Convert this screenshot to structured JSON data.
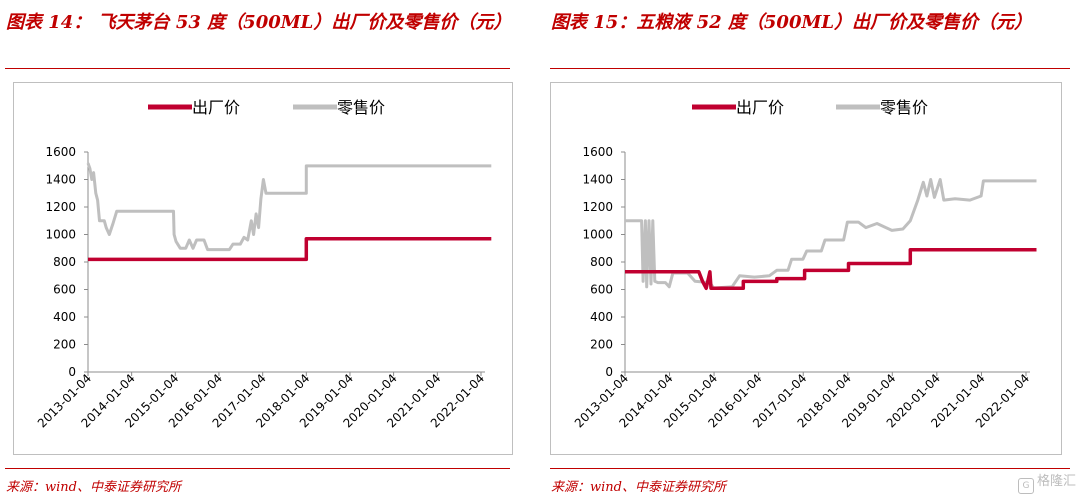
{
  "charts": [
    {
      "title": "图表 14： 飞天茅台 53 度（500ML）出厂价及零售价（元）",
      "source": "来源：wind、中泰证券研究所"
    },
    {
      "title": "图表 15：五粮液 52 度（500ML）出厂价及零售价（元）",
      "source": "来源：wind、中泰证券研究所"
    }
  ],
  "colors": {
    "factory": "#c00030",
    "retail": "#bfbfbf",
    "accent": "#c00000"
  },
  "watermark": {
    "text": "格隆汇"
  },
  "chart_data": [
    {
      "type": "line",
      "xlabel": "",
      "ylabel": "",
      "xlim": [
        "2013-01-04",
        "2022-01-04"
      ],
      "ylim": [
        0,
        1600
      ],
      "yticks": [
        0,
        200,
        400,
        600,
        800,
        1000,
        1200,
        1400,
        1600
      ],
      "xticks": [
        "2013-01-04",
        "2014-01-04",
        "2015-01-04",
        "2016-01-04",
        "2017-01-04",
        "2018-01-04",
        "2019-01-04",
        "2020-01-04",
        "2021-01-04",
        "2022-01-04"
      ],
      "grid": false,
      "legend_position": "top-center",
      "series": [
        {
          "name": "出厂价",
          "color": "#c00030",
          "points": [
            [
              "2013-01-04",
              819
            ],
            [
              "2018-01-04",
              819
            ],
            [
              "2018-01-04",
              969
            ],
            [
              "2022-03-31",
              969
            ]
          ]
        },
        {
          "name": "零售价",
          "color": "#bfbfbf",
          "points": [
            [
              "2013-01-04",
              1519
            ],
            [
              "2013-01-20",
              1480
            ],
            [
              "2013-02-05",
              1400
            ],
            [
              "2013-02-20",
              1450
            ],
            [
              "2013-03-10",
              1300
            ],
            [
              "2013-03-25",
              1250
            ],
            [
              "2013-04-10",
              1100
            ],
            [
              "2013-05-20",
              1100
            ],
            [
              "2013-06-05",
              1050
            ],
            [
              "2013-07-01",
              1000
            ],
            [
              "2013-08-01",
              1080
            ],
            [
              "2013-09-01",
              1169
            ],
            [
              "2014-12-20",
              1169
            ],
            [
              "2014-12-25",
              1000
            ],
            [
              "2015-01-10",
              950
            ],
            [
              "2015-02-15",
              900
            ],
            [
              "2015-04-01",
              900
            ],
            [
              "2015-05-01",
              960
            ],
            [
              "2015-06-01",
              900
            ],
            [
              "2015-07-01",
              960
            ],
            [
              "2015-09-01",
              960
            ],
            [
              "2015-10-01",
              890
            ],
            [
              "2016-04-01",
              890
            ],
            [
              "2016-05-01",
              930
            ],
            [
              "2016-07-01",
              930
            ],
            [
              "2016-08-01",
              980
            ],
            [
              "2016-09-01",
              960
            ],
            [
              "2016-10-01",
              1100
            ],
            [
              "2016-10-20",
              1000
            ],
            [
              "2016-11-10",
              1150
            ],
            [
              "2016-12-01",
              1050
            ],
            [
              "2016-12-20",
              1260
            ],
            [
              "2017-01-10",
              1400
            ],
            [
              "2017-02-01",
              1300
            ],
            [
              "2018-01-04",
              1300
            ],
            [
              "2018-01-04",
              1499
            ],
            [
              "2022-03-31",
              1499
            ]
          ]
        }
      ]
    },
    {
      "type": "line",
      "xlabel": "",
      "ylabel": "",
      "xlim": [
        "2013-01-04",
        "2022-01-04"
      ],
      "ylim": [
        0,
        1600
      ],
      "yticks": [
        0,
        200,
        400,
        600,
        800,
        1000,
        1200,
        1400,
        1600
      ],
      "xticks": [
        "2013-01-04",
        "2014-01-04",
        "2015-01-04",
        "2016-01-04",
        "2017-01-04",
        "2018-01-04",
        "2019-01-04",
        "2020-01-04",
        "2021-01-04",
        "2022-01-04"
      ],
      "grid": false,
      "legend_position": "top-center",
      "series": [
        {
          "name": "出厂价",
          "color": "#c00030",
          "points": [
            [
              "2013-01-04",
              729
            ],
            [
              "2014-09-01",
              729
            ],
            [
              "2014-10-01",
              660
            ],
            [
              "2014-11-01",
              609
            ],
            [
              "2014-12-01",
              729
            ],
            [
              "2014-12-10",
              609
            ],
            [
              "2015-09-01",
              609
            ],
            [
              "2015-09-01",
              659
            ],
            [
              "2016-06-01",
              659
            ],
            [
              "2016-06-01",
              679
            ],
            [
              "2017-01-15",
              679
            ],
            [
              "2017-01-15",
              739
            ],
            [
              "2018-01-10",
              739
            ],
            [
              "2018-01-10",
              789
            ],
            [
              "2019-06-01",
              789
            ],
            [
              "2019-06-01",
              889
            ],
            [
              "2022-03-31",
              889
            ]
          ]
        },
        {
          "name": "零售价",
          "color": "#bfbfbf",
          "points": [
            [
              "2013-01-04",
              1100
            ],
            [
              "2013-05-20",
              1100
            ],
            [
              "2013-06-01",
              660
            ],
            [
              "2013-06-20",
              1100
            ],
            [
              "2013-07-01",
              620
            ],
            [
              "2013-07-20",
              1100
            ],
            [
              "2013-08-05",
              640
            ],
            [
              "2013-08-20",
              1100
            ],
            [
              "2013-09-05",
              660
            ],
            [
              "2013-10-01",
              650
            ],
            [
              "2013-12-01",
              650
            ],
            [
              "2014-01-01",
              620
            ],
            [
              "2014-02-01",
              720
            ],
            [
              "2014-06-01",
              720
            ],
            [
              "2014-08-01",
              660
            ],
            [
              "2014-12-01",
              650
            ],
            [
              "2015-01-01",
              610
            ],
            [
              "2015-06-01",
              620
            ],
            [
              "2015-08-01",
              700
            ],
            [
              "2015-12-01",
              690
            ],
            [
              "2016-04-01",
              700
            ],
            [
              "2016-06-01",
              740
            ],
            [
              "2016-09-01",
              740
            ],
            [
              "2016-10-01",
              820
            ],
            [
              "2017-01-01",
              820
            ],
            [
              "2017-02-01",
              880
            ],
            [
              "2017-06-01",
              880
            ],
            [
              "2017-07-01",
              960
            ],
            [
              "2017-12-01",
              960
            ],
            [
              "2018-01-01",
              1090
            ],
            [
              "2018-04-01",
              1090
            ],
            [
              "2018-06-01",
              1050
            ],
            [
              "2018-09-01",
              1080
            ],
            [
              "2019-01-01",
              1030
            ],
            [
              "2019-04-01",
              1040
            ],
            [
              "2019-06-01",
              1100
            ],
            [
              "2019-08-01",
              1250
            ],
            [
              "2019-09-15",
              1380
            ],
            [
              "2019-10-15",
              1280
            ],
            [
              "2019-11-15",
              1400
            ],
            [
              "2019-12-15",
              1270
            ],
            [
              "2020-02-01",
              1400
            ],
            [
              "2020-03-01",
              1250
            ],
            [
              "2020-06-01",
              1260
            ],
            [
              "2020-10-01",
              1250
            ],
            [
              "2021-01-01",
              1280
            ],
            [
              "2021-01-20",
              1390
            ],
            [
              "2022-03-31",
              1390
            ]
          ]
        }
      ]
    }
  ]
}
